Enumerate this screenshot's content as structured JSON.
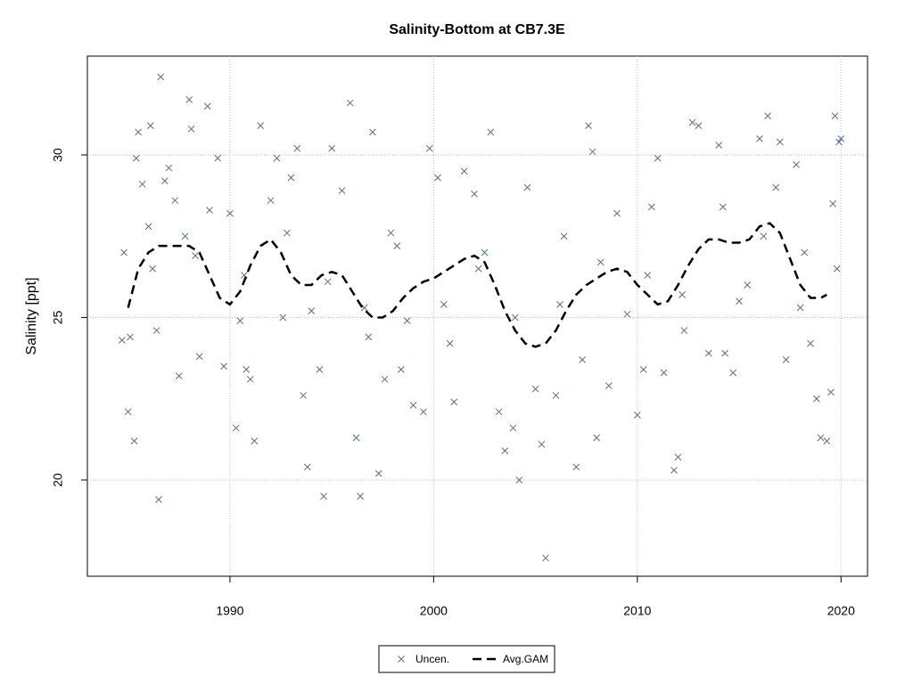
{
  "chart_data": {
    "type": "scatter",
    "title": "Salinity-Bottom at CB7.3E",
    "y_label": "Salinity [ppt]",
    "xlim": [
      1983.0,
      2021.3
    ],
    "ylim": [
      17.04,
      33.04
    ],
    "xticks": [
      1990,
      2000,
      2010,
      2020
    ],
    "yticks": [
      20,
      25,
      30
    ],
    "grid": true,
    "legend": "bottom",
    "series": [
      {
        "name": "Uncen.",
        "type": "scatter",
        "color": "#5b6c88",
        "x": [
          1984.7,
          1984.8,
          1985.0,
          1985.1,
          1985.3,
          1985.4,
          1985.5,
          1985.7,
          1986.0,
          1986.1,
          1986.4,
          1986.5,
          1986.6,
          1986.8,
          1987.0,
          1987.3,
          1987.5,
          1987.8,
          1988.0,
          1988.1,
          1988.5,
          1988.9,
          1989.0,
          1989.4,
          1989.7,
          1990.0,
          1990.3,
          1990.5,
          1990.8,
          1991.0,
          1991.2,
          1991.5,
          1992.0,
          1992.3,
          1992.6,
          1993.0,
          1993.3,
          1993.6,
          1993.8,
          1994.0,
          1994.4,
          1994.6,
          1995.0,
          1995.5,
          1995.9,
          1996.2,
          1996.4,
          1996.8,
          1997.0,
          1997.3,
          1997.6,
          1997.9,
          1998.4,
          1998.7,
          1999.0,
          1999.5,
          1999.8,
          2000.2,
          2000.8,
          2001.0,
          2001.5,
          2002.0,
          2002.5,
          2002.8,
          2003.2,
          2003.5,
          2003.9,
          2004.2,
          2004.6,
          2005.0,
          2005.3,
          2005.5,
          2006.0,
          2006.4,
          2007.0,
          2007.3,
          2007.6,
          2007.8,
          2008.0,
          2008.6,
          2009.0,
          2009.5,
          2010.0,
          2010.3,
          2010.7,
          2011.0,
          2011.3,
          2011.8,
          2012.0,
          2012.3,
          2012.7,
          2013.0,
          2013.5,
          2014.0,
          2014.3,
          2014.7,
          2015.0,
          2015.4,
          2016.0,
          2016.4,
          2016.8,
          2017.0,
          2017.3,
          2017.8,
          2018.0,
          2018.5,
          2018.8,
          2019.0,
          2019.3,
          2019.5,
          2019.7,
          2019.9,
          2020.0,
          2019.6,
          2019.8,
          1986.2,
          1988.3,
          1990.7,
          1992.8,
          1994.8,
          1996.6,
          1998.2,
          2000.5,
          2002.2,
          2004.0,
          2006.2,
          2008.2,
          2010.5,
          2012.2,
          2014.2,
          2016.2,
          2018.2
        ],
        "values": [
          24.3,
          27.0,
          22.1,
          24.4,
          21.2,
          29.9,
          30.7,
          29.1,
          27.8,
          30.9,
          24.6,
          19.4,
          32.4,
          29.2,
          29.6,
          28.6,
          23.2,
          27.5,
          31.7,
          30.8,
          23.8,
          31.5,
          28.3,
          29.9,
          23.5,
          28.2,
          21.6,
          24.9,
          23.4,
          23.1,
          21.2,
          30.9,
          28.6,
          29.9,
          25.0,
          29.3,
          30.2,
          22.6,
          20.4,
          25.2,
          23.4,
          19.5,
          30.2,
          28.9,
          31.6,
          21.3,
          19.5,
          24.4,
          30.7,
          20.2,
          23.1,
          27.6,
          23.4,
          24.9,
          22.3,
          22.1,
          30.2,
          29.3,
          24.2,
          22.4,
          29.5,
          28.8,
          27.0,
          30.7,
          22.1,
          20.9,
          21.6,
          20.0,
          29.0,
          22.8,
          21.1,
          17.6,
          22.6,
          27.5,
          20.4,
          23.7,
          30.9,
          30.1,
          21.3,
          22.9,
          28.2,
          25.1,
          22.0,
          23.4,
          28.4,
          29.9,
          23.3,
          20.3,
          20.7,
          24.6,
          31.0,
          30.9,
          23.9,
          30.3,
          23.9,
          23.3,
          25.5,
          26.0,
          30.5,
          31.2,
          29.0,
          30.4,
          23.7,
          29.7,
          25.3,
          24.2,
          22.5,
          21.3,
          21.2,
          22.7,
          31.2,
          30.4,
          30.5,
          28.5,
          26.5,
          26.5,
          26.9,
          26.3,
          27.6,
          26.1,
          25.3,
          27.2,
          25.4,
          26.5,
          25.0,
          25.4,
          26.7,
          26.3,
          25.7,
          28.4,
          27.5,
          27.0
        ]
      },
      {
        "name": "Avg.GAM",
        "type": "line",
        "color": "#000000",
        "x": [
          1985.0,
          1985.5,
          1986.0,
          1986.5,
          1987.0,
          1987.5,
          1988.0,
          1988.5,
          1989.0,
          1989.5,
          1990.0,
          1990.5,
          1991.0,
          1991.5,
          1992.0,
          1992.5,
          1993.0,
          1993.5,
          1994.0,
          1994.5,
          1995.0,
          1995.5,
          1996.0,
          1996.5,
          1997.0,
          1997.5,
          1998.0,
          1998.5,
          1999.0,
          1999.5,
          2000.0,
          2000.5,
          2001.0,
          2001.5,
          2002.0,
          2002.5,
          2003.0,
          2003.5,
          2004.0,
          2004.5,
          2005.0,
          2005.5,
          2006.0,
          2006.5,
          2007.0,
          2007.5,
          2008.0,
          2008.5,
          2009.0,
          2009.5,
          2010.0,
          2010.5,
          2011.0,
          2011.5,
          2012.0,
          2012.5,
          2013.0,
          2013.5,
          2014.0,
          2014.5,
          2015.0,
          2015.5,
          2016.0,
          2016.5,
          2017.0,
          2017.5,
          2018.0,
          2018.5,
          2019.0,
          2019.3
        ],
        "values": [
          25.3,
          26.5,
          27.0,
          27.2,
          27.2,
          27.2,
          27.2,
          27.0,
          26.3,
          25.6,
          25.4,
          25.8,
          26.6,
          27.2,
          27.4,
          27.0,
          26.3,
          26.0,
          26.0,
          26.3,
          26.4,
          26.3,
          25.8,
          25.3,
          25.0,
          25.0,
          25.2,
          25.6,
          25.9,
          26.1,
          26.2,
          26.4,
          26.6,
          26.8,
          26.9,
          26.7,
          26.0,
          25.2,
          24.6,
          24.2,
          24.1,
          24.2,
          24.6,
          25.2,
          25.7,
          26.0,
          26.2,
          26.4,
          26.5,
          26.4,
          26.0,
          25.7,
          25.4,
          25.5,
          26.0,
          26.6,
          27.1,
          27.4,
          27.4,
          27.3,
          27.3,
          27.4,
          27.8,
          27.9,
          27.6,
          26.8,
          26.0,
          25.6,
          25.6,
          25.7
        ]
      }
    ]
  }
}
